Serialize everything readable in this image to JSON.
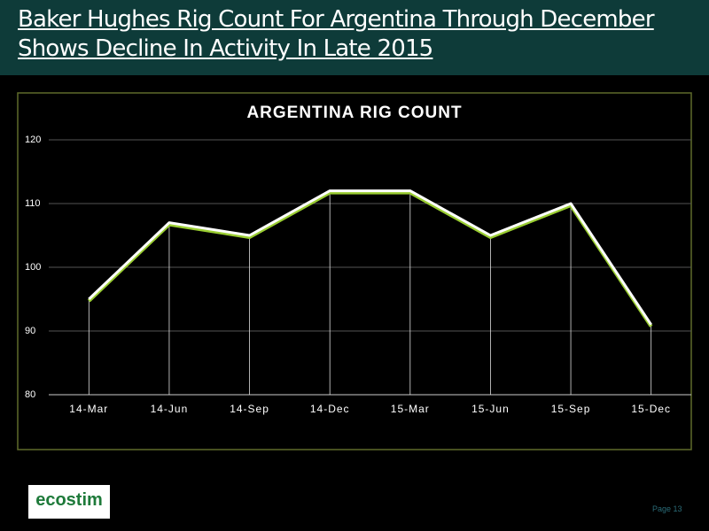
{
  "header": {
    "title": "Baker Hughes Rig Count For Argentina Through December Shows Decline In Activity In Late 2015"
  },
  "chart_data": {
    "type": "line",
    "title": "ARGENTINA RIG COUNT",
    "categories": [
      "14-Mar",
      "14-Jun",
      "14-Sep",
      "14-Dec",
      "15-Mar",
      "15-Jun",
      "15-Sep",
      "15-Dec"
    ],
    "series": [
      {
        "name": "Argentina",
        "color": "#ffffff",
        "values": [
          95,
          107,
          105,
          112,
          112,
          105,
          110,
          91
        ]
      }
    ],
    "ylim": [
      80,
      120
    ],
    "yticks": [
      80,
      90,
      100,
      110,
      120
    ],
    "grid": true,
    "drop_lines": true,
    "legend": false
  },
  "footer": {
    "logo": "ecostim",
    "page": "Page 13"
  }
}
